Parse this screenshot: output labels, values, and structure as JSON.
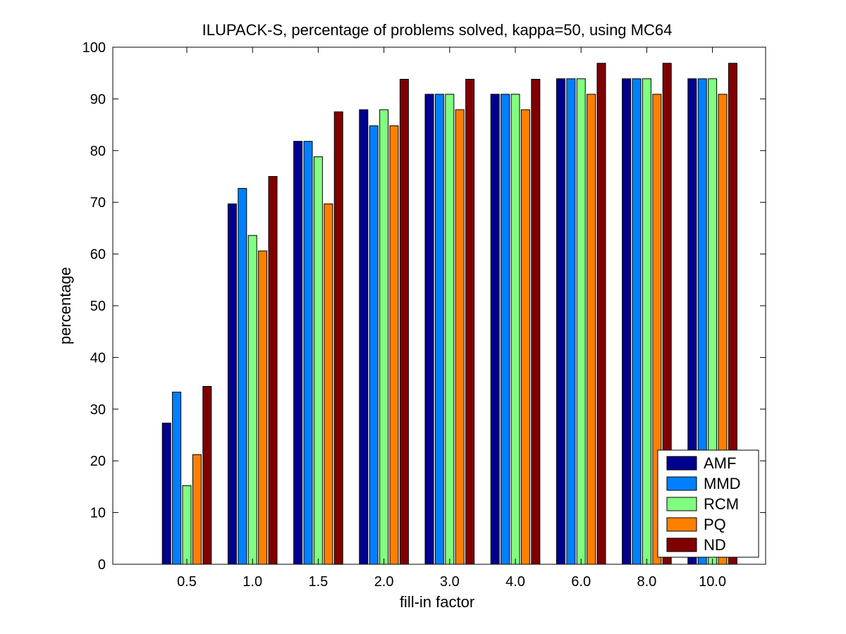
{
  "chart_data": {
    "type": "bar",
    "title": "ILUPACK-S, percentage of problems solved, kappa=50, using MC64",
    "xlabel": "fill-in factor",
    "ylabel": "percentage",
    "categories": [
      "0.5",
      "1.0",
      "1.5",
      "2.0",
      "3.0",
      "4.0",
      "6.0",
      "8.0",
      "10.0"
    ],
    "ylim": [
      0,
      100
    ],
    "yticks": [
      0,
      10,
      20,
      30,
      40,
      50,
      60,
      70,
      80,
      90,
      100
    ],
    "grid": false,
    "legend_position": "bottom-right",
    "series": [
      {
        "name": "AMF",
        "color": "#00008f",
        "values": [
          27.3,
          69.7,
          81.8,
          87.9,
          90.9,
          90.9,
          93.9,
          93.9,
          93.9
        ]
      },
      {
        "name": "MMD",
        "color": "#0080ff",
        "values": [
          33.3,
          72.7,
          81.8,
          84.8,
          90.9,
          90.9,
          93.9,
          93.9,
          93.9
        ]
      },
      {
        "name": "RCM",
        "color": "#80ff80",
        "values": [
          15.2,
          63.6,
          78.8,
          87.9,
          90.9,
          90.9,
          93.9,
          93.9,
          93.9
        ]
      },
      {
        "name": "PQ",
        "color": "#ff8000",
        "values": [
          21.2,
          60.6,
          69.7,
          84.8,
          87.9,
          87.9,
          90.9,
          90.9,
          90.9
        ]
      },
      {
        "name": "ND",
        "color": "#800000",
        "values": [
          34.4,
          75.0,
          87.5,
          93.8,
          93.8,
          93.8,
          96.9,
          96.9,
          96.9
        ]
      }
    ]
  }
}
